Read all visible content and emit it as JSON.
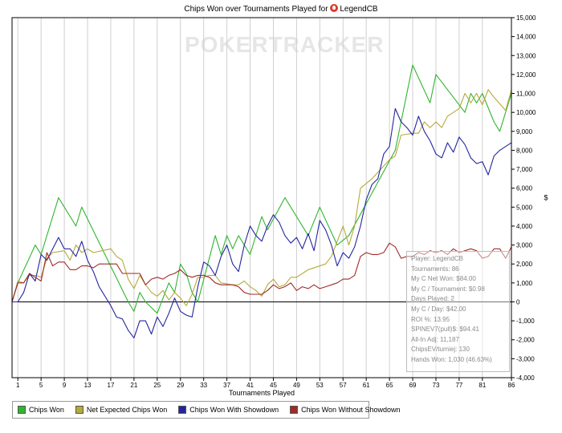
{
  "header": {
    "title_prefix": "Chips Won over Tournaments Played for",
    "player_name": "LegendCB",
    "watermark": "POKERTRACKER"
  },
  "colors": {
    "chips_won": "#2fb52f",
    "net_expected": "#b5a93a",
    "with_showdown": "#2424a0",
    "without_showdown": "#a02a2a",
    "zero_line": "#000000",
    "grid": "#cfcfcf"
  },
  "chart_data": {
    "type": "line",
    "title": "Chips Won over Tournaments Played for LegendCB",
    "xlabel": "Tournaments Played",
    "ylabel": "$",
    "xlim": [
      0,
      86
    ],
    "ylim": [
      -4000,
      15000
    ],
    "x_ticks": [
      "1",
      "5",
      "9",
      "13",
      "17",
      "21",
      "25",
      "29",
      "33",
      "37",
      "41",
      "45",
      "49",
      "53",
      "57",
      "61",
      "65",
      "69",
      "73",
      "77",
      "81",
      "86"
    ],
    "y_ticks": [
      "15,000",
      "14,000",
      "13,000",
      "12,000",
      "11,000",
      "10,000",
      "9,000",
      "8,000",
      "7,000",
      "6,000",
      "5,000",
      "4,000",
      "3,000",
      "2,000",
      "1,000",
      "0",
      "-1,000",
      "-2,000",
      "-3,000",
      "-4,000"
    ],
    "series": [
      {
        "name": "Chips Won",
        "color": "#2fb52f",
        "points": [
          [
            0,
            0
          ],
          [
            1,
            1000
          ],
          [
            4,
            3000
          ],
          [
            5,
            2500
          ],
          [
            8,
            5500
          ],
          [
            11,
            4000
          ],
          [
            12,
            5000
          ],
          [
            20,
            0
          ],
          [
            21,
            -500
          ],
          [
            22,
            500
          ],
          [
            23,
            0
          ],
          [
            25,
            -600
          ],
          [
            27,
            1000
          ],
          [
            28,
            500
          ],
          [
            29,
            2000
          ],
          [
            30,
            1500
          ],
          [
            31,
            500
          ],
          [
            32,
            0
          ],
          [
            35,
            3500
          ],
          [
            36,
            2500
          ],
          [
            37,
            3500
          ],
          [
            38,
            2800
          ],
          [
            39,
            3500
          ],
          [
            41,
            2500
          ],
          [
            43,
            4500
          ],
          [
            44,
            3800
          ],
          [
            47,
            5500
          ],
          [
            51,
            3500
          ],
          [
            53,
            5000
          ],
          [
            56,
            3000
          ],
          [
            58,
            3500
          ],
          [
            66,
            8000
          ],
          [
            69,
            12500
          ],
          [
            72,
            10500
          ],
          [
            73,
            12000
          ],
          [
            78,
            10000
          ],
          [
            79,
            11000
          ],
          [
            80,
            10500
          ],
          [
            81,
            11000
          ],
          [
            83,
            9500
          ],
          [
            84,
            9000
          ],
          [
            86,
            11000
          ]
        ]
      },
      {
        "name": "Net Expected Chips Won",
        "color": "#b5a93a",
        "points": [
          [
            0,
            0
          ],
          [
            1,
            1100
          ],
          [
            2,
            1000
          ],
          [
            3,
            1400
          ],
          [
            4,
            1400
          ],
          [
            5,
            1300
          ],
          [
            6,
            2300
          ],
          [
            7,
            2600
          ],
          [
            9,
            2700
          ],
          [
            10,
            2200
          ],
          [
            11,
            3000
          ],
          [
            12,
            2600
          ],
          [
            13,
            2800
          ],
          [
            14,
            2600
          ],
          [
            17,
            2800
          ],
          [
            18,
            2400
          ],
          [
            19,
            2200
          ],
          [
            20,
            1200
          ],
          [
            21,
            700
          ],
          [
            22,
            1400
          ],
          [
            23,
            900
          ],
          [
            24,
            500
          ],
          [
            25,
            300
          ],
          [
            26,
            600
          ],
          [
            27,
            100
          ],
          [
            28,
            500
          ],
          [
            29,
            200
          ],
          [
            30,
            -200
          ],
          [
            31,
            400
          ],
          [
            32,
            1300
          ],
          [
            33,
            1300
          ],
          [
            34,
            1400
          ],
          [
            35,
            1400
          ],
          [
            36,
            1000
          ],
          [
            38,
            900
          ],
          [
            39,
            900
          ],
          [
            40,
            1100
          ],
          [
            41,
            800
          ],
          [
            42,
            600
          ],
          [
            43,
            300
          ],
          [
            44,
            900
          ],
          [
            45,
            1200
          ],
          [
            46,
            800
          ],
          [
            47,
            900
          ],
          [
            48,
            1300
          ],
          [
            49,
            1300
          ],
          [
            51,
            1700
          ],
          [
            54,
            2000
          ],
          [
            55,
            2400
          ],
          [
            57,
            4000
          ],
          [
            58,
            3000
          ],
          [
            59,
            4000
          ],
          [
            60,
            6000
          ],
          [
            62,
            6500
          ],
          [
            65,
            7500
          ],
          [
            66,
            7700
          ],
          [
            67,
            8800
          ],
          [
            69,
            8900
          ],
          [
            70,
            8900
          ],
          [
            71,
            9500
          ],
          [
            72,
            9200
          ],
          [
            73,
            9500
          ],
          [
            74,
            9200
          ],
          [
            75,
            9800
          ],
          [
            76,
            10000
          ],
          [
            77,
            10200
          ],
          [
            78,
            11000
          ],
          [
            79,
            10500
          ],
          [
            80,
            11000
          ],
          [
            81,
            10400
          ],
          [
            82,
            11200
          ],
          [
            83,
            10800
          ],
          [
            85,
            10100
          ],
          [
            86,
            11200
          ]
        ]
      },
      {
        "name": "Chips Won With Showdown",
        "color": "#2424a0",
        "points": [
          [
            0,
            0
          ],
          [
            1,
            0
          ],
          [
            2,
            500
          ],
          [
            3,
            1500
          ],
          [
            4,
            1100
          ],
          [
            5,
            2500
          ],
          [
            6,
            2200
          ],
          [
            8,
            3400
          ],
          [
            9,
            2800
          ],
          [
            10,
            2800
          ],
          [
            11,
            2400
          ],
          [
            12,
            3200
          ],
          [
            13,
            2200
          ],
          [
            14,
            1600
          ],
          [
            15,
            800
          ],
          [
            16,
            300
          ],
          [
            17,
            -200
          ],
          [
            18,
            -800
          ],
          [
            19,
            -900
          ],
          [
            20,
            -1500
          ],
          [
            21,
            -1900
          ],
          [
            22,
            -1000
          ],
          [
            23,
            -1000
          ],
          [
            24,
            -1700
          ],
          [
            25,
            -800
          ],
          [
            26,
            -1300
          ],
          [
            27,
            -600
          ],
          [
            28,
            200
          ],
          [
            29,
            -500
          ],
          [
            30,
            -700
          ],
          [
            31,
            -800
          ],
          [
            32,
            800
          ],
          [
            33,
            2100
          ],
          [
            34,
            1900
          ],
          [
            35,
            1400
          ],
          [
            36,
            2400
          ],
          [
            37,
            3000
          ],
          [
            38,
            2000
          ],
          [
            39,
            1600
          ],
          [
            40,
            3000
          ],
          [
            41,
            4000
          ],
          [
            42,
            3500
          ],
          [
            43,
            3200
          ],
          [
            44,
            4000
          ],
          [
            45,
            4600
          ],
          [
            46,
            4200
          ],
          [
            47,
            3500
          ],
          [
            48,
            3100
          ],
          [
            49,
            3400
          ],
          [
            50,
            2800
          ],
          [
            51,
            3600
          ],
          [
            52,
            2700
          ],
          [
            53,
            4300
          ],
          [
            54,
            3800
          ],
          [
            55,
            3000
          ],
          [
            56,
            1900
          ],
          [
            57,
            2600
          ],
          [
            58,
            2300
          ],
          [
            59,
            2900
          ],
          [
            60,
            4000
          ],
          [
            61,
            5400
          ],
          [
            62,
            6200
          ],
          [
            63,
            6500
          ],
          [
            64,
            7800
          ],
          [
            65,
            8200
          ],
          [
            66,
            10200
          ],
          [
            67,
            9500
          ],
          [
            68,
            9200
          ],
          [
            69,
            8800
          ],
          [
            70,
            9800
          ],
          [
            71,
            9000
          ],
          [
            72,
            8500
          ],
          [
            73,
            7800
          ],
          [
            74,
            7600
          ],
          [
            75,
            8400
          ],
          [
            76,
            7900
          ],
          [
            77,
            8700
          ],
          [
            78,
            8300
          ],
          [
            79,
            7600
          ],
          [
            80,
            7300
          ],
          [
            81,
            7400
          ],
          [
            82,
            6700
          ],
          [
            83,
            7700
          ],
          [
            84,
            8000
          ],
          [
            86,
            8400
          ]
        ]
      },
      {
        "name": "Chips Won Without Showdown",
        "color": "#a02a2a",
        "points": [
          [
            0,
            0
          ],
          [
            1,
            1000
          ],
          [
            2,
            1000
          ],
          [
            3,
            1500
          ],
          [
            4,
            1300
          ],
          [
            5,
            1100
          ],
          [
            6,
            2600
          ],
          [
            7,
            1900
          ],
          [
            8,
            2100
          ],
          [
            9,
            2100
          ],
          [
            10,
            1700
          ],
          [
            11,
            1700
          ],
          [
            12,
            1900
          ],
          [
            13,
            1900
          ],
          [
            14,
            1800
          ],
          [
            15,
            2000
          ],
          [
            16,
            2000
          ],
          [
            18,
            2000
          ],
          [
            19,
            1500
          ],
          [
            20,
            1500
          ],
          [
            22,
            1500
          ],
          [
            23,
            900
          ],
          [
            24,
            1200
          ],
          [
            25,
            1300
          ],
          [
            26,
            1200
          ],
          [
            27,
            1400
          ],
          [
            28,
            1500
          ],
          [
            29,
            1700
          ],
          [
            30,
            1400
          ],
          [
            31,
            1300
          ],
          [
            32,
            1400
          ],
          [
            33,
            1400
          ],
          [
            34,
            1300
          ],
          [
            35,
            1000
          ],
          [
            36,
            900
          ],
          [
            38,
            900
          ],
          [
            39,
            800
          ],
          [
            40,
            500
          ],
          [
            41,
            400
          ],
          [
            42,
            400
          ],
          [
            43,
            400
          ],
          [
            44,
            600
          ],
          [
            45,
            900
          ],
          [
            46,
            700
          ],
          [
            47,
            800
          ],
          [
            48,
            1000
          ],
          [
            49,
            600
          ],
          [
            50,
            800
          ],
          [
            51,
            700
          ],
          [
            52,
            900
          ],
          [
            53,
            700
          ],
          [
            54,
            800
          ],
          [
            55,
            900
          ],
          [
            56,
            1000
          ],
          [
            57,
            1200
          ],
          [
            58,
            1200
          ],
          [
            59,
            1400
          ],
          [
            60,
            2400
          ],
          [
            61,
            2600
          ],
          [
            62,
            2500
          ],
          [
            63,
            2500
          ],
          [
            64,
            2600
          ],
          [
            65,
            3100
          ],
          [
            66,
            2900
          ],
          [
            67,
            2300
          ],
          [
            68,
            2400
          ],
          [
            69,
            2400
          ],
          [
            70,
            2600
          ],
          [
            71,
            2500
          ],
          [
            72,
            2700
          ],
          [
            73,
            2600
          ],
          [
            74,
            2700
          ],
          [
            75,
            2500
          ],
          [
            76,
            2800
          ],
          [
            77,
            2600
          ],
          [
            78,
            2700
          ],
          [
            79,
            2800
          ],
          [
            80,
            2700
          ],
          [
            81,
            2300
          ],
          [
            82,
            2400
          ],
          [
            83,
            2800
          ],
          [
            84,
            2800
          ],
          [
            85,
            2300
          ],
          [
            86,
            2900
          ]
        ]
      }
    ]
  },
  "stats": [
    "Player: LegendCB",
    "Tournaments: 86",
    "My C Net Won: $84.00",
    "My C / Tournament: $0.98",
    "Days Played: 2",
    "My C / Day: $42.00",
    "ROI %: 13.95",
    "SPINEV7(pull)$: $94.41",
    "All-In Adj: 11,187",
    "ChipsEV/turniej: 130",
    "Hands Won: 1,030 (46.63%)"
  ],
  "legend": [
    {
      "label": "Chips Won",
      "color": "#2fb52f"
    },
    {
      "label": "Net Expected Chips Won",
      "color": "#b5a93a"
    },
    {
      "label": "Chips Won With Showdown",
      "color": "#2424a0"
    },
    {
      "label": "Chips Won Without Showdown",
      "color": "#a02a2a"
    }
  ]
}
